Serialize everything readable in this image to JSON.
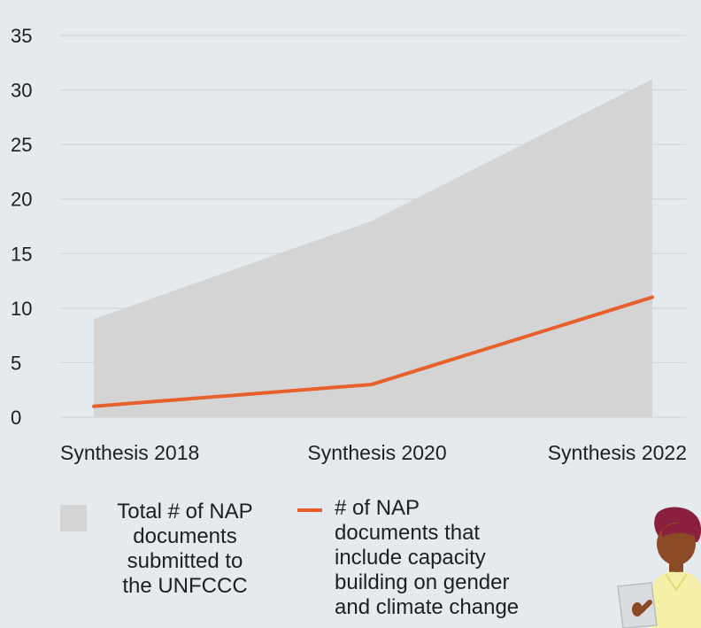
{
  "chart_data": {
    "type": "area",
    "categories": [
      "Synthesis 2018",
      "Synthesis 2020",
      "Synthesis 2022"
    ],
    "series": [
      {
        "name": "Total # of NAP documents submitted to the UNFCCC",
        "type": "area",
        "values": [
          9,
          18,
          31
        ],
        "color": "#d4d4d4"
      },
      {
        "name": "# of NAP documents that include capacity building on gender and climate change",
        "type": "line",
        "values": [
          1,
          3,
          11
        ],
        "color": "#e8602c"
      }
    ],
    "yticks": [
      0,
      5,
      10,
      15,
      20,
      25,
      30,
      35
    ],
    "ylim": [
      0,
      35
    ],
    "grid": true,
    "legend_position": "bottom"
  },
  "legend": {
    "area_label": "Total # of NAP\ndocuments\nsubmitted to\nthe UNFCCC",
    "line_label": "# of NAP\ndocuments that\ninclude capacity\nbuilding on gender\nand climate change"
  },
  "colors": {
    "background": "#e4eaed",
    "grid": "#c9d3d8",
    "area": "#d4d4d4",
    "line": "#e8602c"
  },
  "illustration": {
    "icon": "person-reading-illustration"
  }
}
